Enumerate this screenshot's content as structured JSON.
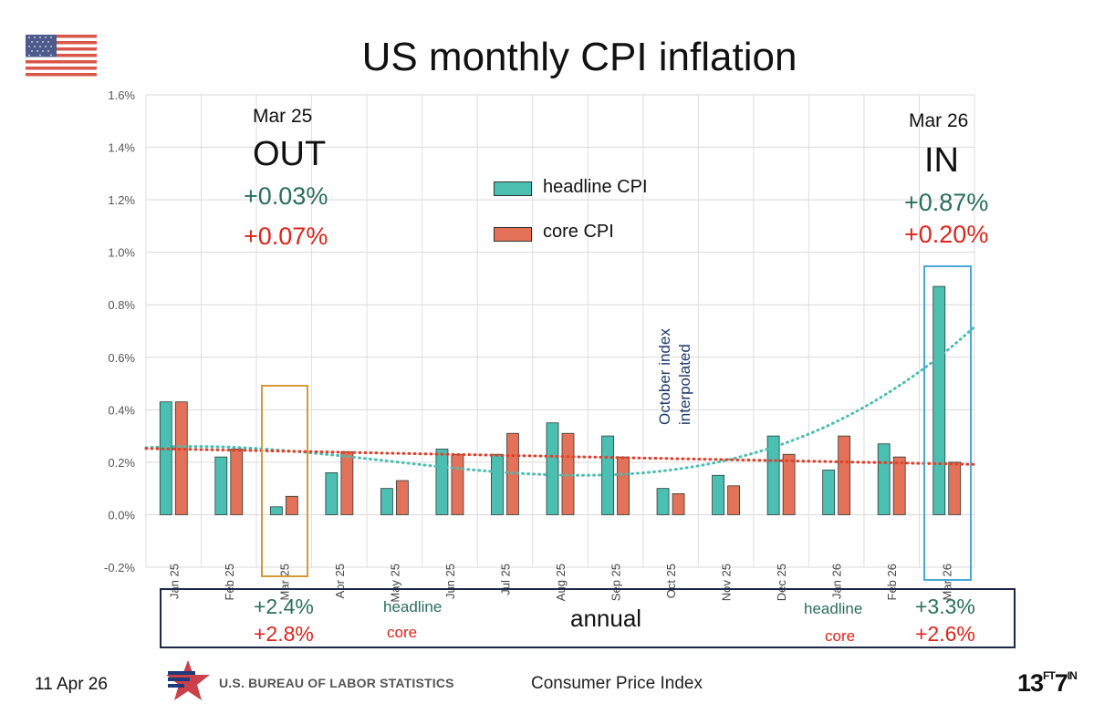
{
  "title": "US monthly CPI inflation",
  "chart_data": {
    "type": "bar",
    "title": "US monthly CPI inflation",
    "categories": [
      "Jan 25",
      "Feb 25",
      "Mar 25",
      "Apr 25",
      "May 25",
      "Jun 25",
      "Jul 25",
      "Aug 25",
      "Sep 25",
      "Oct 25",
      "Nov 25",
      "Dec 25",
      "Jan 26",
      "Feb 26",
      "Mar 26"
    ],
    "series": [
      {
        "name": "headline CPI",
        "color": "#4bbfb2",
        "values": [
          0.43,
          0.22,
          0.03,
          0.16,
          0.1,
          0.25,
          0.23,
          0.35,
          0.3,
          0.1,
          0.15,
          0.3,
          0.17,
          0.27,
          0.87
        ]
      },
      {
        "name": "core CPI",
        "color": "#e47258",
        "values": [
          0.43,
          0.25,
          0.07,
          0.24,
          0.13,
          0.23,
          0.31,
          0.31,
          0.22,
          0.08,
          0.11,
          0.23,
          0.3,
          0.22,
          0.2
        ]
      }
    ],
    "yticks": [
      "-0.2%",
      "0.0%",
      "0.2%",
      "0.4%",
      "0.6%",
      "0.8%",
      "1.0%",
      "1.2%",
      "1.4%",
      "1.6%"
    ],
    "ylim": [
      -0.2,
      1.6
    ],
    "trendlines": [
      {
        "name": "headline trend",
        "color": "#4bbfb2",
        "style": "dotted"
      },
      {
        "name": "core trend",
        "color": "#e0402a",
        "style": "dotted"
      }
    ],
    "legend": [
      "headline CPI",
      "core CPI"
    ],
    "annotation": "October index interpolated"
  },
  "out_panel": {
    "date": "Mar 25",
    "label": "OUT",
    "headline": "+0.03%",
    "core": "+0.07%"
  },
  "in_panel": {
    "date": "Mar 26",
    "label": "IN",
    "headline": "+0.87%",
    "core": "+0.20%"
  },
  "annual": {
    "label": "annual",
    "left_headline_value": "+2.4%",
    "left_headline_label": "headline",
    "left_core_value": "+2.8%",
    "left_core_label": "core",
    "right_headline_label": "headline",
    "right_headline_value": "+3.3%",
    "right_core_label": "core",
    "right_core_value": "+2.6%"
  },
  "footer": {
    "date": "11 Apr 26",
    "source_logo_text": "U.S. BUREAU OF LABOR STATISTICS",
    "source": "Consumer Price Index",
    "brand": "13",
    "brand_sup": "FT",
    "brand_tail": "7",
    "brand_tail_sup": "IN"
  },
  "colors": {
    "headline": "#4bbfb2",
    "core": "#e47258",
    "out_box": "#d49a3a",
    "in_box": "#4aa8d8",
    "annual_box": "#1c2747"
  }
}
